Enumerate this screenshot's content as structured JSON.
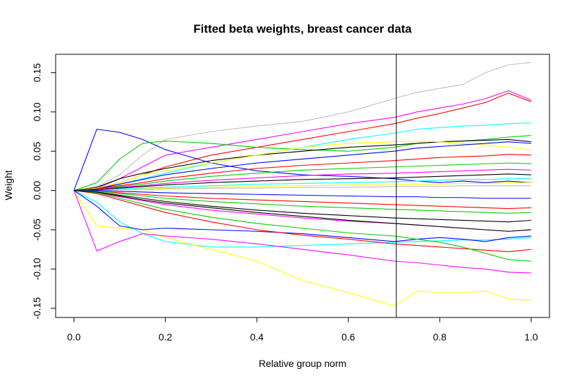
{
  "chart_data": {
    "type": "line",
    "title": "Fitted beta weights, breast cancer data",
    "xlabel": "Relative group norm",
    "ylabel": "Weight",
    "xlim": [
      0.0,
      1.0
    ],
    "ylim": [
      -0.15,
      0.15
    ],
    "x_ticks": [
      "0.0",
      "0.2",
      "0.4",
      "0.6",
      "0.8",
      "1.0"
    ],
    "y_ticks": [
      "-0.15",
      "-0.10",
      "-0.05",
      "0.00",
      "0.05",
      "0.10",
      "0.15"
    ],
    "vline_x": 0.705,
    "grid": false,
    "legend": "none",
    "x": [
      0.0,
      0.05,
      0.1,
      0.15,
      0.2,
      0.3,
      0.4,
      0.5,
      0.6,
      0.7,
      0.75,
      0.8,
      0.85,
      0.9,
      0.95,
      1.0
    ],
    "series": [
      {
        "color": "#BEBEBE",
        "values": [
          0.0,
          0.005,
          0.02,
          0.045,
          0.065,
          0.075,
          0.082,
          0.088,
          0.1,
          0.117,
          0.125,
          0.13,
          0.135,
          0.15,
          0.16,
          0.163
        ]
      },
      {
        "color": "#FF00FF",
        "values": [
          0.0,
          0.003,
          0.015,
          0.03,
          0.045,
          0.055,
          0.065,
          0.075,
          0.085,
          0.093,
          0.1,
          0.105,
          0.11,
          0.117,
          0.127,
          0.115
        ]
      },
      {
        "color": "#FF0000",
        "values": [
          0.0,
          0.002,
          0.01,
          0.02,
          0.03,
          0.045,
          0.055,
          0.065,
          0.075,
          0.085,
          0.092,
          0.098,
          0.105,
          0.112,
          0.124,
          0.113
        ]
      },
      {
        "color": "#0000FF",
        "values": [
          0.0,
          0.078,
          0.074,
          0.065,
          0.052,
          0.035,
          0.025,
          0.02,
          0.018,
          0.015,
          0.012,
          0.01,
          0.012,
          0.01,
          0.012,
          0.01
        ]
      },
      {
        "color": "#00FFFF",
        "values": [
          0.0,
          0.002,
          0.008,
          0.015,
          0.022,
          0.035,
          0.045,
          0.055,
          0.065,
          0.073,
          0.078,
          0.08,
          0.082,
          0.083,
          0.085,
          0.086
        ]
      },
      {
        "color": "#00CD00",
        "values": [
          0.0,
          0.01,
          0.04,
          0.06,
          0.063,
          0.06,
          0.055,
          0.052,
          0.05,
          0.055,
          0.06,
          0.062,
          0.063,
          0.065,
          0.068,
          0.07
        ]
      },
      {
        "color": "#000000",
        "values": [
          0.0,
          0.004,
          0.015,
          0.022,
          0.028,
          0.038,
          0.045,
          0.05,
          0.055,
          0.058,
          0.06,
          0.062,
          0.063,
          0.064,
          0.065,
          0.062
        ]
      },
      {
        "color": "#FFFF00",
        "values": [
          0.0,
          0.003,
          0.01,
          0.02,
          0.025,
          0.035,
          0.045,
          0.055,
          0.06,
          0.062,
          0.063,
          0.062,
          0.06,
          0.058,
          0.055,
          0.052
        ]
      },
      {
        "color": "#0000FF",
        "values": [
          0.0,
          0.002,
          0.008,
          0.014,
          0.02,
          0.028,
          0.035,
          0.04,
          0.045,
          0.05,
          0.054,
          0.056,
          0.058,
          0.06,
          0.062,
          0.06
        ]
      },
      {
        "color": "#FF0000",
        "values": [
          0.0,
          0.002,
          0.006,
          0.01,
          0.015,
          0.022,
          0.028,
          0.032,
          0.035,
          0.038,
          0.04,
          0.042,
          0.043,
          0.044,
          0.046,
          0.045
        ]
      },
      {
        "color": "#00CD00",
        "values": [
          0.0,
          0.001,
          0.005,
          0.008,
          0.012,
          0.018,
          0.022,
          0.026,
          0.028,
          0.03,
          0.031,
          0.032,
          0.033,
          0.034,
          0.035,
          0.034
        ]
      },
      {
        "color": "#FF00FF",
        "values": [
          0.0,
          0.001,
          0.004,
          0.006,
          0.009,
          0.013,
          0.016,
          0.019,
          0.021,
          0.022,
          0.023,
          0.024,
          0.025,
          0.026,
          0.027,
          0.026
        ]
      },
      {
        "color": "#000000",
        "values": [
          0.0,
          0.001,
          0.003,
          0.005,
          0.007,
          0.01,
          0.012,
          0.014,
          0.015,
          0.016,
          0.017,
          0.018,
          0.019,
          0.02,
          0.021,
          0.02
        ]
      },
      {
        "color": "#00FFFF",
        "values": [
          0.0,
          0.0,
          0.002,
          0.003,
          0.004,
          0.006,
          0.008,
          0.009,
          0.01,
          0.011,
          0.012,
          0.013,
          0.014,
          0.014,
          0.015,
          0.015
        ]
      },
      {
        "color": "#FFFF00",
        "values": [
          0.0,
          0.0,
          0.001,
          0.002,
          0.003,
          0.004,
          0.005,
          0.006,
          0.007,
          0.007,
          0.008,
          0.008,
          0.009,
          0.009,
          0.01,
          0.01
        ]
      },
      {
        "color": "#BEBEBE",
        "values": [
          0.0,
          0.0,
          0.001,
          0.001,
          0.002,
          0.003,
          0.003,
          0.004,
          0.004,
          0.005,
          0.005,
          0.005,
          0.006,
          0.006,
          0.006,
          0.006
        ]
      },
      {
        "color": "#0000FF",
        "values": [
          0.0,
          0.0,
          -0.001,
          -0.002,
          -0.003,
          -0.004,
          -0.005,
          -0.006,
          -0.007,
          -0.008,
          -0.008,
          -0.009,
          -0.009,
          -0.01,
          -0.01,
          -0.01
        ]
      },
      {
        "color": "#FF0000",
        "values": [
          0.0,
          -0.001,
          -0.003,
          -0.005,
          -0.007,
          -0.01,
          -0.012,
          -0.014,
          -0.016,
          -0.018,
          -0.019,
          -0.02,
          -0.021,
          -0.022,
          -0.023,
          -0.022
        ]
      },
      {
        "color": "#00CD00",
        "values": [
          0.0,
          -0.001,
          -0.004,
          -0.007,
          -0.01,
          -0.014,
          -0.017,
          -0.02,
          -0.022,
          -0.024,
          -0.025,
          -0.026,
          -0.027,
          -0.028,
          -0.029,
          -0.028
        ]
      },
      {
        "color": "#000000",
        "values": [
          0.0,
          -0.002,
          -0.006,
          -0.01,
          -0.014,
          -0.02,
          -0.025,
          -0.029,
          -0.032,
          -0.035,
          -0.036,
          -0.037,
          -0.038,
          -0.039,
          -0.04,
          -0.038
        ]
      },
      {
        "color": "#FF00FF",
        "values": [
          0.0,
          -0.003,
          -0.008,
          -0.013,
          -0.018,
          -0.025,
          -0.03,
          -0.035,
          -0.039,
          -0.042,
          -0.044,
          -0.046,
          -0.048,
          -0.05,
          -0.052,
          -0.05
        ]
      },
      {
        "color": "#00FFFF",
        "values": [
          0.0,
          -0.015,
          -0.04,
          -0.055,
          -0.065,
          -0.072,
          -0.072,
          -0.07,
          -0.068,
          -0.066,
          -0.065,
          -0.064,
          -0.063,
          -0.063,
          -0.062,
          -0.06
        ]
      },
      {
        "color": "#FFFF00",
        "values": [
          0.0,
          -0.045,
          -0.048,
          -0.05,
          -0.06,
          -0.075,
          -0.09,
          -0.115,
          -0.13,
          -0.147,
          -0.128,
          -0.13,
          -0.13,
          -0.128,
          -0.138,
          -0.14
        ]
      },
      {
        "color": "#FF00FF",
        "values": [
          0.0,
          -0.077,
          -0.065,
          -0.055,
          -0.058,
          -0.062,
          -0.068,
          -0.075,
          -0.082,
          -0.09,
          -0.092,
          -0.095,
          -0.098,
          -0.1,
          -0.104,
          -0.105
        ]
      },
      {
        "color": "#0000FF",
        "values": [
          0.0,
          -0.02,
          -0.045,
          -0.05,
          -0.048,
          -0.05,
          -0.052,
          -0.055,
          -0.06,
          -0.065,
          -0.062,
          -0.06,
          -0.062,
          -0.065,
          -0.06,
          -0.058
        ]
      },
      {
        "color": "#FF0000",
        "values": [
          0.0,
          -0.004,
          -0.012,
          -0.02,
          -0.028,
          -0.04,
          -0.05,
          -0.057,
          -0.062,
          -0.068,
          -0.07,
          -0.072,
          -0.074,
          -0.076,
          -0.078,
          -0.075
        ]
      },
      {
        "color": "#00CD00",
        "values": [
          0.0,
          -0.003,
          -0.01,
          -0.017,
          -0.024,
          -0.034,
          -0.042,
          -0.048,
          -0.054,
          -0.058,
          -0.062,
          -0.066,
          -0.072,
          -0.08,
          -0.088,
          -0.09
        ]
      },
      {
        "color": "#000000",
        "values": [
          0.0,
          -0.002,
          -0.007,
          -0.012,
          -0.016,
          -0.022,
          -0.028,
          -0.033,
          -0.038,
          -0.042,
          -0.044,
          -0.046,
          -0.048,
          -0.05,
          -0.052,
          -0.05
        ]
      }
    ]
  }
}
